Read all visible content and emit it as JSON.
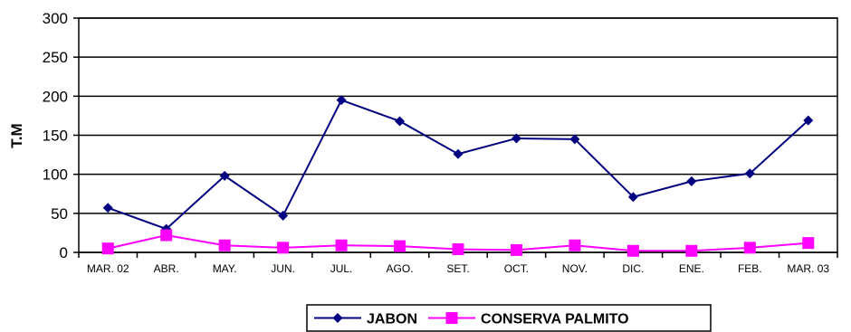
{
  "chart_data": {
    "type": "line",
    "categories": [
      "MAR. 02",
      "ABR.",
      "MAY.",
      "JUN.",
      "JUL.",
      "AGO.",
      "SET.",
      "OCT.",
      "NOV.",
      "DIC.",
      "ENE.",
      "FEB.",
      "MAR. 03"
    ],
    "series": [
      {
        "name": "JABON",
        "color": "#000080",
        "marker": "diamond",
        "values": [
          57,
          30,
          98,
          47,
          195,
          168,
          126,
          146,
          145,
          71,
          91,
          101,
          169
        ]
      },
      {
        "name": "CONSERVA PALMITO",
        "color": "#FF00FF",
        "marker": "square",
        "values": [
          5,
          22,
          9,
          6,
          9,
          8,
          4,
          3,
          9,
          2,
          2,
          6,
          12
        ]
      }
    ],
    "ylabel": "T.M",
    "xlabel": "",
    "ylim": [
      0,
      300
    ],
    "yticks": [
      0,
      50,
      100,
      150,
      200,
      250,
      300
    ],
    "grid": "horizontal",
    "legend": "bottom-center"
  }
}
